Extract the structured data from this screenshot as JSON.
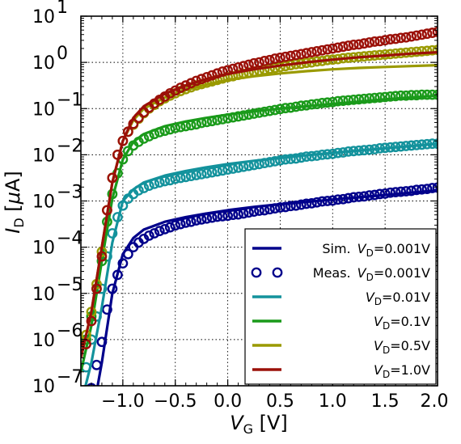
{
  "chart_data": {
    "type": "line",
    "xlabel": {
      "main": "V",
      "sub": "G",
      "unit": " [V]"
    },
    "ylabel": {
      "main": "I",
      "sub": "D",
      "unit_pre": " [",
      "unit_mu": "μ",
      "unit_post": "A]"
    },
    "xlim": [
      -1.4,
      2.0
    ],
    "ylim_log10": [
      -7,
      1
    ],
    "y_scale": "log",
    "grid": true,
    "grid_style": "dotted",
    "x_ticks": [
      -1.0,
      -0.5,
      0.0,
      0.5,
      1.0,
      1.5,
      2.0
    ],
    "x_tick_labels": [
      "−1.0",
      "−0.5",
      "0.0",
      "0.5",
      "1.0",
      "1.5",
      "2.0"
    ],
    "y_tick_exponents": [
      -7,
      -6,
      -5,
      -4,
      -3,
      -2,
      -1,
      0,
      1
    ],
    "y_tick_labels": [
      "10",
      "10",
      "10",
      "10",
      "10",
      "10",
      "10",
      "10",
      "10"
    ],
    "y_tick_exp_labels": [
      "−7",
      "−6",
      "−5",
      "−4",
      "−3",
      "−2",
      "−1",
      "0",
      "1"
    ],
    "legend_position": "lower-right",
    "legend": [
      {
        "prefix": "Sim.",
        "v": "V",
        "sub": "D",
        "rest": "=0.001V",
        "style": "line",
        "color": "#00008b"
      },
      {
        "prefix": "Meas.",
        "v": "V",
        "sub": "D",
        "rest": "=0.001V",
        "style": "markers",
        "color": "#00008b"
      },
      {
        "prefix": "",
        "v": "V",
        "sub": "D",
        "rest": "=0.01V",
        "style": "line",
        "color": "#13929c"
      },
      {
        "prefix": "",
        "v": "V",
        "sub": "D",
        "rest": "=0.1V",
        "style": "line",
        "color": "#1a9a1a"
      },
      {
        "prefix": "",
        "v": "V",
        "sub": "D",
        "rest": "=0.5V",
        "style": "line",
        "color": "#9a9a00"
      },
      {
        "prefix": "",
        "v": "V",
        "sub": "D",
        "rest": "=1.0V",
        "style": "line",
        "color": "#9b1008"
      }
    ],
    "series": [
      {
        "color": "#00008b",
        "simulated": {
          "x": [
            -1.28,
            -1.2,
            -1.1,
            -1.0,
            -0.9,
            -0.8,
            -0.6,
            -0.4,
            -0.2,
            0.0,
            0.25,
            0.5,
            0.75,
            1.0,
            1.25,
            1.5,
            1.75,
            2.0
          ],
          "y_log10": [
            -7.5,
            -6.5,
            -5.0,
            -4.15,
            -3.8,
            -3.62,
            -3.45,
            -3.35,
            -3.27,
            -3.2,
            -3.13,
            -3.07,
            -3.02,
            -2.97,
            -2.92,
            -2.87,
            -2.82,
            -2.77
          ]
        },
        "measured": {
          "x": [
            -1.3,
            -1.25,
            -1.2,
            -1.15,
            -1.1,
            -1.05,
            -1.0,
            -0.95,
            -0.9,
            -0.85,
            -0.8,
            -0.75,
            -0.7,
            -0.65,
            -0.6,
            -0.55,
            -0.5,
            -0.45,
            -0.4,
            -0.35,
            -0.3,
            -0.25,
            -0.2,
            -0.15,
            -0.1,
            -0.05,
            0.0,
            0.05,
            0.1,
            0.15,
            0.2,
            0.25,
            0.3,
            0.35,
            0.4,
            0.45,
            0.5,
            0.55,
            0.6,
            0.65,
            0.7,
            0.75,
            0.8,
            0.85,
            0.9,
            0.95,
            1.0,
            1.05,
            1.1,
            1.15,
            1.2,
            1.25,
            1.3,
            1.35,
            1.4,
            1.45,
            1.5,
            1.55,
            1.6,
            1.65,
            1.7,
            1.75,
            1.8,
            1.85,
            1.9,
            1.95,
            2.0
          ],
          "y_log10": [
            -7.05,
            -6.55,
            -6.05,
            -5.35,
            -4.9,
            -4.6,
            -4.35,
            -4.15,
            -4.0,
            -3.9,
            -3.82,
            -3.75,
            -3.7,
            -3.65,
            -3.61,
            -3.57,
            -3.53,
            -3.5,
            -3.47,
            -3.45,
            -3.42,
            -3.4,
            -3.38,
            -3.36,
            -3.34,
            -3.33,
            -3.32,
            -3.3,
            -3.29,
            -3.27,
            -3.25,
            -3.23,
            -3.21,
            -3.2,
            -3.18,
            -3.16,
            -3.14,
            -3.13,
            -3.11,
            -3.1,
            -3.08,
            -3.06,
            -3.05,
            -3.03,
            -3.01,
            -3.0,
            -2.99,
            -2.97,
            -2.96,
            -2.94,
            -2.92,
            -2.91,
            -2.9,
            -2.88,
            -2.87,
            -2.85,
            -2.84,
            -2.82,
            -2.81,
            -2.8,
            -2.79,
            -2.78,
            -2.76,
            -2.75,
            -2.74,
            -2.72,
            -2.71
          ]
        }
      },
      {
        "color": "#13929c",
        "simulated": {
          "x": [
            -1.4,
            -1.3,
            -1.2,
            -1.1,
            -1.0,
            -0.9,
            -0.8,
            -0.6,
            -0.4,
            -0.2,
            0.0,
            0.25,
            0.5,
            0.75,
            1.0,
            1.25,
            1.5,
            1.75,
            2.0
          ],
          "y_log10": [
            -7.4,
            -6.5,
            -5.3,
            -3.9,
            -3.0,
            -2.75,
            -2.6,
            -2.45,
            -2.35,
            -2.27,
            -2.2,
            -2.13,
            -2.07,
            -2.01,
            -1.96,
            -1.91,
            -1.86,
            -1.81,
            -1.76
          ]
        },
        "measured": {
          "x": [
            -1.35,
            -1.3,
            -1.25,
            -1.2,
            -1.15,
            -1.1,
            -1.05,
            -1.0,
            -0.95,
            -0.9,
            -0.85,
            -0.8,
            -0.75,
            -0.7,
            -0.65,
            -0.6,
            -0.55,
            -0.5,
            -0.45,
            -0.4,
            -0.35,
            -0.3,
            -0.25,
            -0.2,
            -0.15,
            -0.1,
            -0.05,
            0.0,
            0.05,
            0.1,
            0.15,
            0.2,
            0.25,
            0.3,
            0.35,
            0.4,
            0.45,
            0.5,
            0.55,
            0.6,
            0.65,
            0.7,
            0.75,
            0.8,
            0.85,
            0.9,
            0.95,
            1.0,
            1.05,
            1.1,
            1.15,
            1.2,
            1.25,
            1.3,
            1.35,
            1.4,
            1.45,
            1.5,
            1.55,
            1.6,
            1.65,
            1.7,
            1.75,
            1.8,
            1.85,
            1.9,
            1.95,
            2.0
          ],
          "y_log10": [
            -6.6,
            -6.0,
            -5.5,
            -4.9,
            -4.2,
            -3.7,
            -3.35,
            -3.1,
            -2.95,
            -2.85,
            -2.77,
            -2.72,
            -2.67,
            -2.63,
            -2.6,
            -2.57,
            -2.55,
            -2.52,
            -2.5,
            -2.48,
            -2.46,
            -2.44,
            -2.42,
            -2.4,
            -2.38,
            -2.36,
            -2.34,
            -2.32,
            -2.3,
            -2.28,
            -2.26,
            -2.24,
            -2.22,
            -2.2,
            -2.18,
            -2.16,
            -2.14,
            -2.12,
            -2.1,
            -2.09,
            -2.08,
            -2.06,
            -2.04,
            -2.03,
            -2.02,
            -2.0,
            -1.99,
            -1.98,
            -1.96,
            -1.95,
            -1.93,
            -1.92,
            -1.91,
            -1.9,
            -1.89,
            -1.88,
            -1.86,
            -1.85,
            -1.84,
            -1.83,
            -1.82,
            -1.81,
            -1.8,
            -1.79,
            -1.78,
            -1.77,
            -1.76,
            -1.76
          ]
        }
      },
      {
        "color": "#1a9a1a",
        "simulated": {
          "x": [
            -1.4,
            -1.3,
            -1.2,
            -1.1,
            -1.0,
            -0.9,
            -0.8,
            -0.6,
            -0.4,
            -0.2,
            0.0,
            0.25,
            0.5,
            0.75,
            1.0,
            1.25,
            1.5,
            1.75,
            2.0
          ],
          "y_log10": [
            -6.7,
            -5.7,
            -4.3,
            -2.95,
            -2.1,
            -1.72,
            -1.55,
            -1.38,
            -1.28,
            -1.2,
            -1.13,
            -1.06,
            -1.0,
            -0.95,
            -0.9,
            -0.85,
            -0.8,
            -0.76,
            -0.72
          ]
        },
        "measured": {
          "x": [
            -1.35,
            -1.3,
            -1.25,
            -1.2,
            -1.15,
            -1.1,
            -1.05,
            -1.0,
            -0.95,
            -0.9,
            -0.85,
            -0.8,
            -0.75,
            -0.7,
            -0.65,
            -0.6,
            -0.55,
            -0.5,
            -0.45,
            -0.4,
            -0.35,
            -0.3,
            -0.25,
            -0.2,
            -0.15,
            -0.1,
            -0.05,
            0.0,
            0.05,
            0.1,
            0.15,
            0.2,
            0.25,
            0.3,
            0.35,
            0.4,
            0.45,
            0.5,
            0.55,
            0.6,
            0.65,
            0.7,
            0.75,
            0.8,
            0.85,
            0.9,
            0.95,
            1.0,
            1.05,
            1.1,
            1.15,
            1.2,
            1.25,
            1.3,
            1.35,
            1.4,
            1.45,
            1.5,
            1.55,
            1.6,
            1.65,
            1.7,
            1.75,
            1.8,
            1.85,
            1.9,
            1.95,
            2.0
          ],
          "y_log10": [
            -6.0,
            -5.5,
            -4.9,
            -4.3,
            -3.45,
            -2.85,
            -2.4,
            -2.1,
            -1.92,
            -1.8,
            -1.72,
            -1.65,
            -1.6,
            -1.55,
            -1.51,
            -1.48,
            -1.45,
            -1.42,
            -1.4,
            -1.38,
            -1.36,
            -1.34,
            -1.31,
            -1.29,
            -1.27,
            -1.25,
            -1.23,
            -1.21,
            -1.19,
            -1.17,
            -1.15,
            -1.13,
            -1.11,
            -1.09,
            -1.07,
            -1.05,
            -1.03,
            -1.01,
            -0.99,
            -0.98,
            -0.96,
            -0.94,
            -0.93,
            -0.91,
            -0.9,
            -0.88,
            -0.87,
            -0.86,
            -0.84,
            -0.83,
            -0.82,
            -0.81,
            -0.8,
            -0.79,
            -0.78,
            -0.77,
            -0.76,
            -0.75,
            -0.74,
            -0.73,
            -0.72,
            -0.72,
            -0.71,
            -0.71,
            -0.7,
            -0.7,
            -0.7,
            -0.7
          ]
        }
      },
      {
        "color": "#9a9a00",
        "simulated": {
          "x": [
            -1.4,
            -1.3,
            -1.2,
            -1.1,
            -1.0,
            -0.9,
            -0.8,
            -0.6,
            -0.4,
            -0.2,
            0.0,
            0.25,
            0.5,
            0.75,
            1.0,
            1.25,
            1.5,
            1.75,
            2.0
          ],
          "y_log10": [
            -6.4,
            -5.4,
            -4.0,
            -2.6,
            -1.7,
            -1.25,
            -1.0,
            -0.76,
            -0.6,
            -0.48,
            -0.38,
            -0.3,
            -0.24,
            -0.19,
            -0.15,
            -0.12,
            -0.1,
            -0.08,
            -0.06
          ]
        },
        "measured": {
          "x": [
            -1.35,
            -1.3,
            -1.25,
            -1.2,
            -1.15,
            -1.1,
            -1.05,
            -1.0,
            -0.95,
            -0.9,
            -0.85,
            -0.8,
            -0.75,
            -0.7,
            -0.65,
            -0.6,
            -0.55,
            -0.5,
            -0.45,
            -0.4,
            -0.35,
            -0.3,
            -0.25,
            -0.2,
            -0.15,
            -0.1,
            -0.05,
            0.0,
            0.05,
            0.1,
            0.15,
            0.2,
            0.25,
            0.3,
            0.35,
            0.4,
            0.45,
            0.5,
            0.55,
            0.6,
            0.65,
            0.7,
            0.75,
            0.8,
            0.85,
            0.9,
            0.95,
            1.0,
            1.05,
            1.1,
            1.15,
            1.2,
            1.25,
            1.3,
            1.35,
            1.4,
            1.45,
            1.5,
            1.55,
            1.6,
            1.65,
            1.7,
            1.75,
            1.8,
            1.85,
            1.9,
            1.95,
            2.0
          ],
          "y_log10": [
            -5.9,
            -5.4,
            -4.8,
            -4.1,
            -3.2,
            -2.5,
            -2.0,
            -1.7,
            -1.5,
            -1.35,
            -1.22,
            -1.1,
            -1.0,
            -0.92,
            -0.84,
            -0.78,
            -0.72,
            -0.67,
            -0.62,
            -0.58,
            -0.54,
            -0.5,
            -0.47,
            -0.44,
            -0.41,
            -0.38,
            -0.35,
            -0.32,
            -0.3,
            -0.27,
            -0.25,
            -0.22,
            -0.2,
            -0.18,
            -0.16,
            -0.14,
            -0.12,
            -0.1,
            -0.08,
            -0.06,
            -0.04,
            -0.03,
            -0.01,
            0.0,
            0.02,
            0.03,
            0.05,
            0.06,
            0.07,
            0.09,
            0.1,
            0.11,
            0.12,
            0.13,
            0.14,
            0.15,
            0.16,
            0.17,
            0.18,
            0.19,
            0.2,
            0.21,
            0.22,
            0.23,
            0.24,
            0.25,
            0.26,
            0.27
          ]
        }
      },
      {
        "color": "#9b1008",
        "simulated": {
          "x": [
            -1.4,
            -1.3,
            -1.2,
            -1.1,
            -1.0,
            -0.9,
            -0.8,
            -0.6,
            -0.4,
            -0.2,
            0.0,
            0.25,
            0.5,
            0.75,
            1.0,
            1.25,
            1.5,
            1.75,
            2.0
          ],
          "y_log10": [
            -6.4,
            -5.4,
            -4.0,
            -2.6,
            -1.7,
            -1.2,
            -0.95,
            -0.68,
            -0.5,
            -0.36,
            -0.25,
            -0.15,
            -0.07,
            0.0,
            0.06,
            0.11,
            0.15,
            0.19,
            0.22
          ]
        },
        "measured": {
          "x": [
            -1.35,
            -1.3,
            -1.25,
            -1.2,
            -1.15,
            -1.1,
            -1.05,
            -1.0,
            -0.95,
            -0.9,
            -0.85,
            -0.8,
            -0.75,
            -0.7,
            -0.65,
            -0.6,
            -0.55,
            -0.5,
            -0.45,
            -0.4,
            -0.35,
            -0.3,
            -0.25,
            -0.2,
            -0.15,
            -0.1,
            -0.05,
            0.0,
            0.05,
            0.1,
            0.15,
            0.2,
            0.25,
            0.3,
            0.35,
            0.4,
            0.45,
            0.5,
            0.55,
            0.6,
            0.65,
            0.7,
            0.75,
            0.8,
            0.85,
            0.9,
            0.95,
            1.0,
            1.05,
            1.1,
            1.15,
            1.2,
            1.25,
            1.3,
            1.35,
            1.4,
            1.45,
            1.5,
            1.55,
            1.6,
            1.65,
            1.7,
            1.75,
            1.8,
            1.85,
            1.9,
            1.95,
            2.0
          ],
          "y_log10": [
            -6.1,
            -5.6,
            -4.9,
            -4.2,
            -3.2,
            -2.5,
            -2.0,
            -1.7,
            -1.5,
            -1.33,
            -1.2,
            -1.08,
            -0.98,
            -0.89,
            -0.81,
            -0.74,
            -0.67,
            -0.61,
            -0.55,
            -0.5,
            -0.45,
            -0.4,
            -0.36,
            -0.32,
            -0.28,
            -0.24,
            -0.2,
            -0.17,
            -0.14,
            -0.11,
            -0.08,
            -0.05,
            -0.02,
            0.0,
            0.03,
            0.05,
            0.08,
            0.1,
            0.12,
            0.14,
            0.16,
            0.18,
            0.2,
            0.22,
            0.24,
            0.26,
            0.28,
            0.3,
            0.32,
            0.34,
            0.36,
            0.38,
            0.39,
            0.41,
            0.43,
            0.45,
            0.46,
            0.48,
            0.5,
            0.51,
            0.53,
            0.54,
            0.56,
            0.58,
            0.6,
            0.62,
            0.64,
            0.66
          ]
        }
      }
    ]
  }
}
